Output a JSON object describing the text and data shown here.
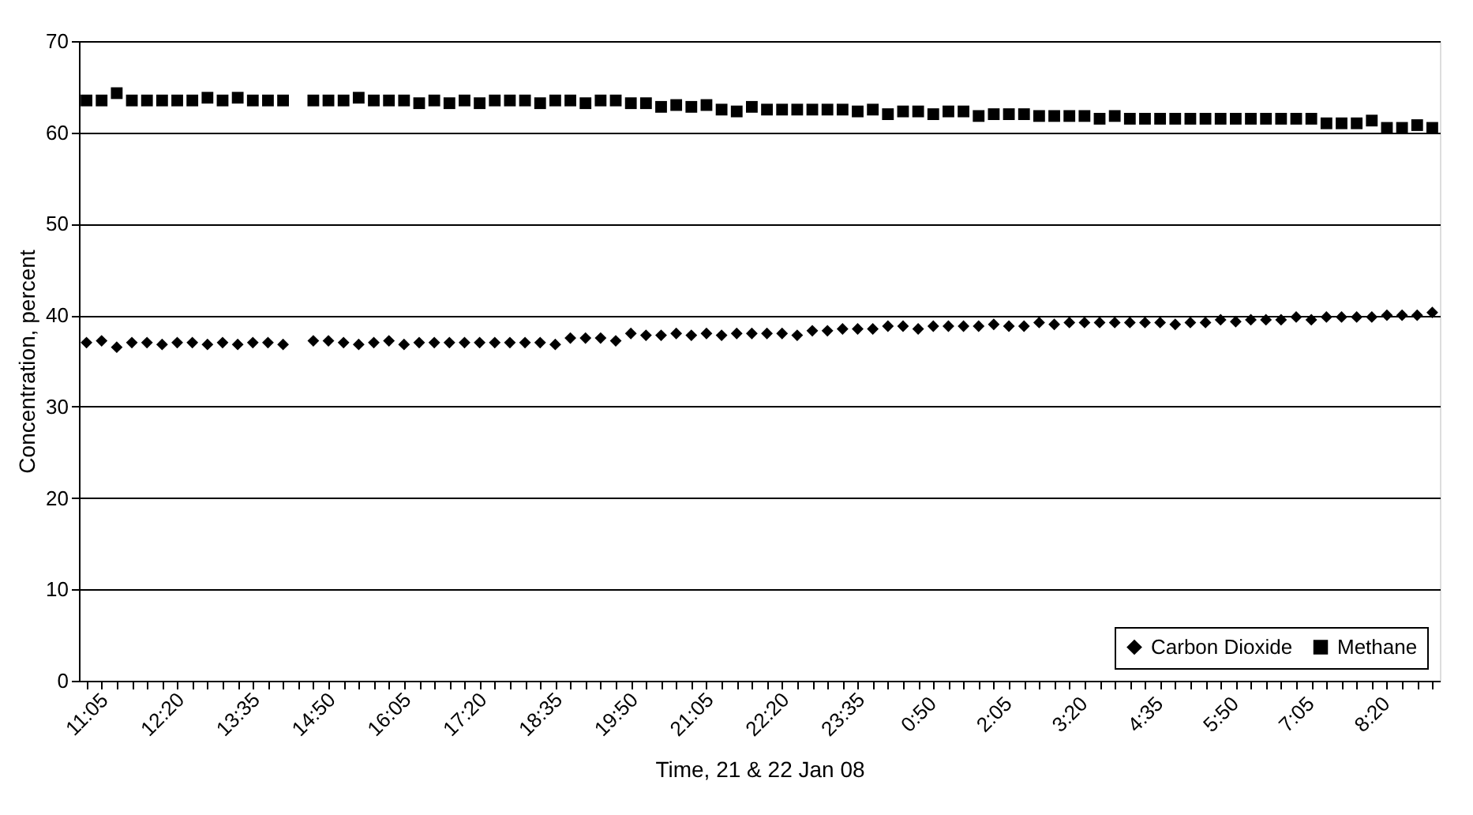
{
  "chart_data": {
    "type": "scatter",
    "xlabel": "Time, 21 & 22 Jan 08",
    "ylabel": "Concentration, percent",
    "categories": [
      "11:05",
      null,
      null,
      null,
      null,
      "12:20",
      null,
      null,
      null,
      null,
      "13:35",
      null,
      null,
      null,
      null,
      "14:50",
      null,
      null,
      null,
      null,
      "16:05",
      null,
      null,
      null,
      null,
      "17:20",
      null,
      null,
      null,
      null,
      "18:35",
      null,
      null,
      null,
      null,
      "19:50",
      null,
      null,
      null,
      null,
      "21:05",
      null,
      null,
      null,
      null,
      "22:20",
      null,
      null,
      null,
      null,
      "23:35",
      null,
      null,
      null,
      null,
      "0:50",
      null,
      null,
      null,
      null,
      "2:05",
      null,
      null,
      null,
      null,
      "3:20",
      null,
      null,
      null,
      null,
      "4:35",
      null,
      null,
      null,
      null,
      "5:50",
      null,
      null,
      null,
      null,
      "7:05",
      null,
      null,
      null,
      null,
      "8:20",
      null,
      null,
      null,
      null
    ],
    "series": [
      {
        "name": "Carbon Dioxide",
        "color": "#000000",
        "marker": "diamond",
        "values": [
          37.0,
          37.2,
          36.5,
          37.0,
          37.0,
          36.8,
          37.0,
          37.0,
          36.8,
          37.0,
          36.8,
          37.0,
          37.0,
          36.8,
          null,
          37.2,
          37.2,
          37.0,
          36.8,
          37.0,
          37.2,
          36.8,
          37.0,
          37.0,
          37.0,
          37.0,
          37.0,
          37.0,
          37.0,
          37.0,
          37.0,
          36.8,
          37.5,
          37.5,
          37.5,
          37.2,
          38.0,
          37.8,
          37.8,
          38.0,
          37.8,
          38.0,
          37.8,
          38.0,
          38.0,
          38.0,
          38.0,
          37.8,
          38.3,
          38.3,
          38.5,
          38.5,
          38.5,
          38.8,
          38.8,
          38.5,
          38.8,
          38.8,
          38.8,
          38.8,
          39.0,
          38.8,
          38.8,
          39.2,
          39.0,
          39.2,
          39.2,
          39.2,
          39.2,
          39.2,
          39.2,
          39.2,
          39.0,
          39.2,
          39.2,
          39.5,
          39.3,
          39.5,
          39.5,
          39.5,
          39.8,
          39.5,
          39.8,
          39.8,
          39.8,
          39.8,
          40.0,
          40.0,
          40.0,
          40.3
        ]
      },
      {
        "name": "Methane",
        "color": "#000000",
        "marker": "square",
        "values": [
          63.5,
          63.5,
          64.3,
          63.5,
          63.5,
          63.5,
          63.5,
          63.5,
          63.8,
          63.5,
          63.8,
          63.5,
          63.5,
          63.5,
          null,
          63.5,
          63.5,
          63.5,
          63.8,
          63.5,
          63.5,
          63.5,
          63.2,
          63.5,
          63.2,
          63.5,
          63.2,
          63.5,
          63.5,
          63.5,
          63.2,
          63.5,
          63.5,
          63.2,
          63.5,
          63.5,
          63.2,
          63.2,
          62.8,
          63.0,
          62.8,
          63.0,
          62.5,
          62.3,
          62.8,
          62.5,
          62.5,
          62.5,
          62.5,
          62.5,
          62.5,
          62.3,
          62.5,
          62.0,
          62.3,
          62.3,
          62.0,
          62.3,
          62.3,
          61.8,
          62.0,
          62.0,
          62.0,
          61.8,
          61.8,
          61.8,
          61.8,
          61.5,
          61.8,
          61.5,
          61.5,
          61.5,
          61.5,
          61.5,
          61.5,
          61.5,
          61.5,
          61.5,
          61.5,
          61.5,
          61.5,
          61.5,
          61.0,
          61.0,
          61.0,
          61.3,
          60.5,
          60.5,
          60.8,
          60.5
        ]
      }
    ],
    "ylim": [
      0,
      70
    ],
    "yticks": [
      0,
      10,
      20,
      30,
      40,
      50,
      60,
      70
    ],
    "grid": "y",
    "legend": "bottom right"
  }
}
